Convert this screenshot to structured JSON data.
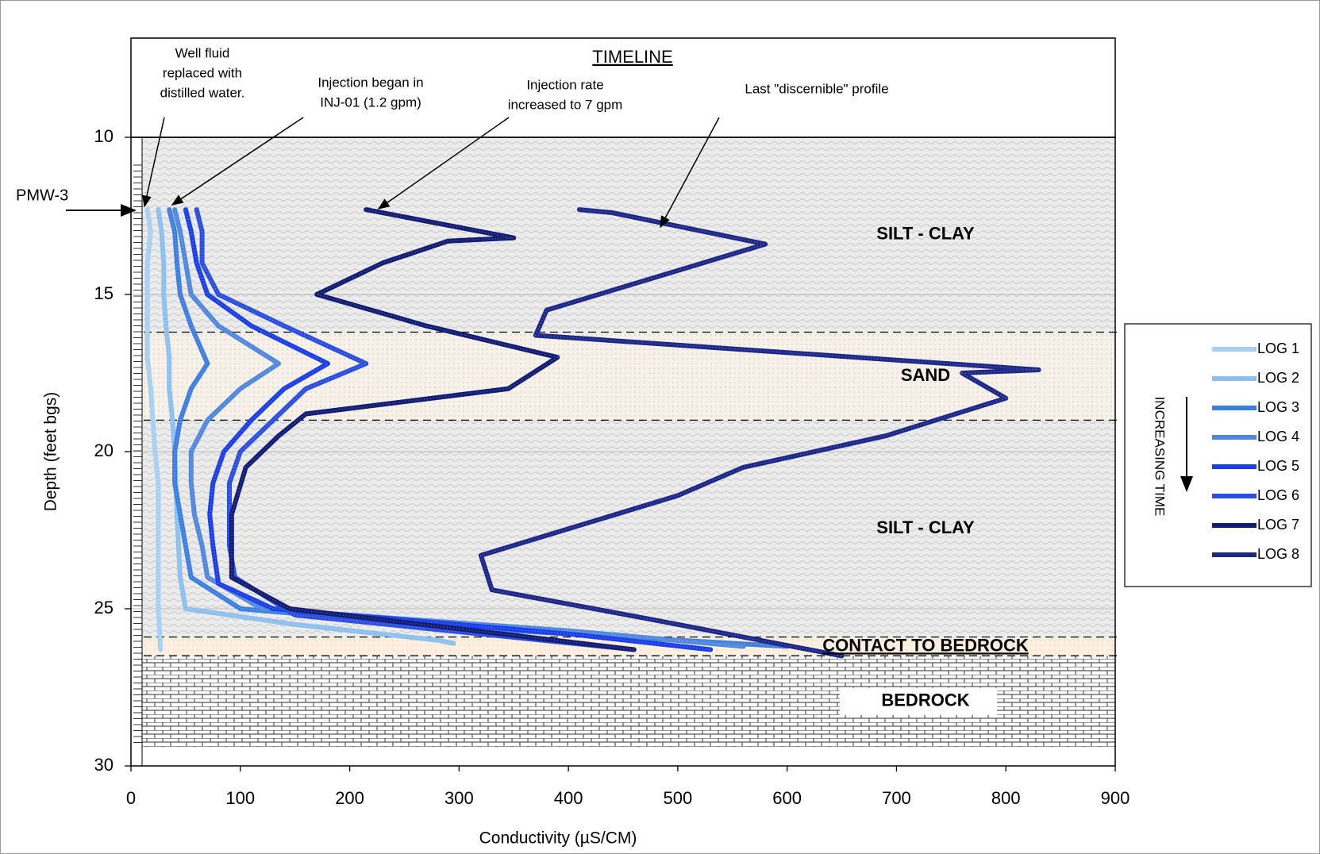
{
  "chart_data": {
    "type": "line",
    "xlabel": "Conductivity (µS/CM)",
    "ylabel": "Depth (feet bgs)",
    "xlim": [
      0,
      900
    ],
    "xticks": [
      0,
      100,
      200,
      300,
      400,
      500,
      600,
      700,
      800,
      900
    ],
    "ylim": [
      10,
      30
    ],
    "yticks": [
      10,
      15,
      20,
      25,
      30
    ],
    "y_inverted": true,
    "grid": true,
    "timeline_title": "TIMELINE",
    "well_label": "PMW-3",
    "time_arrow_label": "INCREASING TIME",
    "legend_position": "right",
    "annotations": [
      {
        "lines": [
          "Well fluid",
          "replaced with",
          "distilled water."
        ]
      },
      {
        "lines": [
          "Injection began in",
          "INJ-01 (1.2 gpm)"
        ]
      },
      {
        "lines": [
          "Injection rate",
          "increased to 7 gpm"
        ]
      },
      {
        "lines": [
          "Last \"discernible\" profile"
        ]
      }
    ],
    "layers": [
      {
        "label": "SILT - CLAY",
        "top": 10,
        "bottom": 16.2,
        "pattern": "silt-clay"
      },
      {
        "label": "SAND",
        "top": 16.2,
        "bottom": 19,
        "pattern": "sand"
      },
      {
        "label": "SILT - CLAY",
        "top": 19,
        "bottom": 25.9,
        "pattern": "silt-clay"
      },
      {
        "label": "CONTACT TO BEDROCK",
        "top": 25.9,
        "bottom": 26.5,
        "pattern": "contact"
      },
      {
        "label": "BEDROCK",
        "top": 26.5,
        "bottom": 29.4,
        "pattern": "brick"
      }
    ],
    "series": [
      {
        "name": "LOG 1",
        "color": "#a8d0f2",
        "x": [
          15,
          18,
          15,
          15,
          15,
          15,
          18,
          20,
          22,
          25,
          25,
          25,
          25,
          25,
          27
        ],
        "values": [
          12.3,
          13,
          14,
          15,
          16,
          17,
          18,
          19,
          20,
          21,
          22,
          23,
          24,
          25,
          26.3
        ]
      },
      {
        "name": "LOG 2",
        "color": "#8dc0ee",
        "x": [
          25,
          28,
          30,
          30,
          32,
          35,
          35,
          38,
          40,
          42,
          45,
          50,
          150,
          280,
          295
        ],
        "values": [
          12.3,
          13,
          14,
          15,
          16,
          17,
          18,
          19,
          20,
          22,
          24,
          25,
          25.5,
          26,
          26.1
        ]
      },
      {
        "name": "LOG 3",
        "color": "#3d7fe0",
        "x": [
          35,
          40,
          42,
          45,
          55,
          70,
          55,
          45,
          40,
          40,
          45,
          50,
          55,
          100,
          300,
          600
        ],
        "values": [
          12.3,
          13,
          14,
          15,
          16,
          17.2,
          18,
          19,
          20,
          21,
          22,
          23,
          24,
          25,
          25.6,
          26.2
        ]
      },
      {
        "name": "LOG 4",
        "color": "#5088de",
        "x": [
          40,
          45,
          50,
          55,
          80,
          135,
          100,
          70,
          55,
          55,
          58,
          65,
          70,
          120,
          400,
          560
        ],
        "values": [
          12.3,
          13,
          14,
          15,
          16,
          17.2,
          18,
          19,
          20,
          21,
          22,
          23,
          24,
          25,
          25.7,
          26.2
        ]
      },
      {
        "name": "LOG 5",
        "color": "#1a3fe8",
        "x": [
          50,
          55,
          60,
          70,
          110,
          180,
          140,
          110,
          85,
          75,
          72,
          75,
          80,
          130,
          400,
          530
        ],
        "values": [
          12.3,
          13,
          14,
          15,
          16,
          17.2,
          18,
          19,
          20,
          21,
          22,
          23,
          24.2,
          25,
          25.8,
          26.3
        ]
      },
      {
        "name": "LOG 6",
        "color": "#2a4ee0",
        "x": [
          60,
          65,
          65,
          80,
          140,
          215,
          160,
          130,
          100,
          90,
          90,
          90,
          95,
          150,
          460
        ],
        "values": [
          12.3,
          13,
          14,
          15,
          16,
          17.2,
          18,
          19,
          20,
          21,
          22,
          23,
          24,
          25.2,
          26.3
        ]
      },
      {
        "name": "LOG 7",
        "color": "#121c72",
        "x": [
          215,
          350,
          290,
          230,
          170,
          270,
          390,
          345,
          160,
          135,
          105,
          92,
          92,
          145,
          460
        ],
        "values": [
          12.3,
          13.2,
          13.3,
          14,
          15,
          16,
          17,
          18,
          18.8,
          19.5,
          20.5,
          22,
          24,
          25,
          26.3
        ]
      },
      {
        "name": "LOG 8",
        "color": "#1d2788",
        "x": [
          410,
          440,
          580,
          380,
          370,
          830,
          760,
          800,
          690,
          560,
          500,
          320,
          330,
          470,
          650
        ],
        "values": [
          12.3,
          12.4,
          13.4,
          15.5,
          16.3,
          17.4,
          17.5,
          18.3,
          19.5,
          20.5,
          21.4,
          23.3,
          24.4,
          25.3,
          26.5
        ]
      }
    ]
  }
}
